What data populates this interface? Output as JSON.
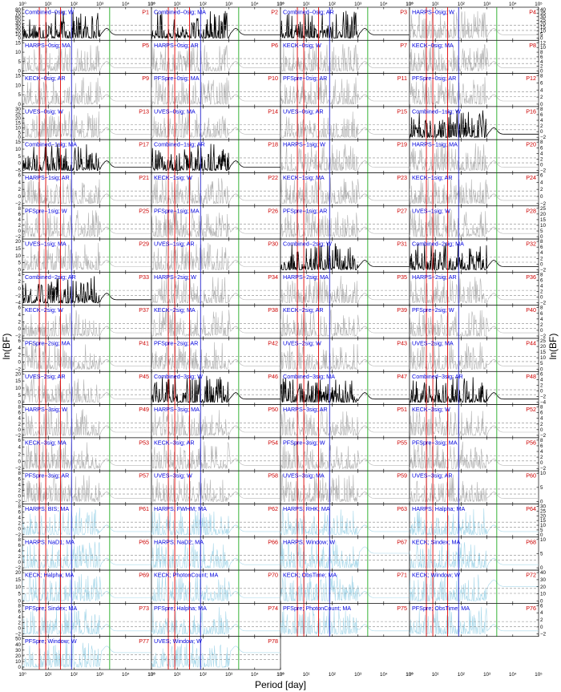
{
  "figure": {
    "xlabel": "Period [day]",
    "ylabel_left": "ln(BF)",
    "ylabel_right": "ln(BF)",
    "x_tick_labels": [
      "10⁰",
      "10¹",
      "10²",
      "10³",
      "10⁴",
      "10⁵"
    ]
  },
  "chart_data": {
    "type": "line",
    "grid_rows": 20,
    "grid_cols": 4,
    "x_scale": "log",
    "xlim": [
      1,
      100000
    ],
    "vertical_lines": [
      {
        "color": "#e00000"
      },
      {
        "color": "#e00000"
      },
      {
        "color": "#e00000"
      },
      {
        "color": "#2222cc"
      },
      {
        "color": "#22aa22"
      }
    ],
    "series_colors": {
      "black": "#000000",
      "gray": "#b4b4b4",
      "lightblue": "#a8d8ea"
    },
    "panels": [
      {
        "id": "P1",
        "name": "Combined−0sig; W",
        "color": "black",
        "yticks": [
          "0",
          "10",
          "20",
          "30",
          "40",
          "50",
          "60",
          "70",
          "80"
        ]
      },
      {
        "id": "P2",
        "name": "Combined−0sig; MA",
        "color": "black",
        "yticks": []
      },
      {
        "id": "P3",
        "name": "Combined−0sig; AR",
        "color": "black",
        "yticks": []
      },
      {
        "id": "P4",
        "name": "HARPS−0sig; W",
        "color": "gray",
        "yticks": [
          "0",
          "5",
          "10",
          "15",
          "20",
          "25",
          "30",
          "35",
          "40"
        ]
      },
      {
        "id": "P5",
        "name": "HARPS−0sig; MA",
        "color": "gray",
        "yticks": [
          "0",
          "5",
          "10",
          "15"
        ]
      },
      {
        "id": "P6",
        "name": "HARPS−0sig; AR",
        "color": "gray",
        "yticks": []
      },
      {
        "id": "P7",
        "name": "KECK−0sig; W",
        "color": "gray",
        "yticks": []
      },
      {
        "id": "P8",
        "name": "KECK−0sig; MA",
        "color": "gray",
        "yticks": [
          "0",
          "2",
          "4",
          "6",
          "8",
          "10",
          "12"
        ]
      },
      {
        "id": "P9",
        "name": "KECK−0sig; AR",
        "color": "gray",
        "yticks": [
          "0",
          "5",
          "10",
          "15"
        ]
      },
      {
        "id": "P10",
        "name": "PFSpre−0sig; MA",
        "color": "gray",
        "yticks": []
      },
      {
        "id": "P11",
        "name": "PFSpre−0sig; AR",
        "color": "gray",
        "yticks": []
      },
      {
        "id": "P12",
        "name": "PFSpre−0sig; AR",
        "color": "gray",
        "yticks": [
          "0",
          "2",
          "4",
          "6",
          "8"
        ]
      },
      {
        "id": "P13",
        "name": "UVES−0sig; W",
        "color": "gray",
        "yticks": [
          "0",
          "5",
          "10",
          "15",
          "20",
          "25",
          "30"
        ]
      },
      {
        "id": "P14",
        "name": "UVES−0sig; MA",
        "color": "gray",
        "yticks": []
      },
      {
        "id": "P15",
        "name": "UVES−0sig; AR",
        "color": "gray",
        "yticks": []
      },
      {
        "id": "P16",
        "name": "Combined−1sig; W",
        "color": "black",
        "yticks": [
          "−2",
          "0",
          "2",
          "4",
          "6",
          "8"
        ]
      },
      {
        "id": "P17",
        "name": "Combined−1sig; MA",
        "color": "black",
        "yticks": [
          "−5",
          "0",
          "5",
          "10",
          "15"
        ]
      },
      {
        "id": "P18",
        "name": "Combined−1sig; AR",
        "color": "black",
        "yticks": []
      },
      {
        "id": "P19",
        "name": "HARPS−1sig; W",
        "color": "gray",
        "yticks": []
      },
      {
        "id": "P20",
        "name": "HARPS−1sig; MA",
        "color": "gray",
        "yticks": [
          "−2",
          "0",
          "2",
          "4",
          "6",
          "8"
        ]
      },
      {
        "id": "P21",
        "name": "HARPS−1sig; AR",
        "color": "gray",
        "yticks": [
          "−2",
          "0",
          "2",
          "4",
          "6"
        ]
      },
      {
        "id": "P22",
        "name": "KECK−1sig; W",
        "color": "gray",
        "yticks": []
      },
      {
        "id": "P23",
        "name": "KECK−1sig; MA",
        "color": "gray",
        "yticks": []
      },
      {
        "id": "P24",
        "name": "KECK−1sig; AR",
        "color": "gray",
        "yticks": [
          "−2",
          "0",
          "2",
          "4",
          "6"
        ]
      },
      {
        "id": "P25",
        "name": "PFSpre−1sig; W",
        "color": "gray",
        "yticks": [
          "−2",
          "0",
          "2",
          "4",
          "6",
          "8"
        ]
      },
      {
        "id": "P26",
        "name": "PFSpre−1sig; MA",
        "color": "gray",
        "yticks": []
      },
      {
        "id": "P27",
        "name": "PFSpre−1sig; AR",
        "color": "gray",
        "yticks": []
      },
      {
        "id": "P28",
        "name": "UVES−1sig; W",
        "color": "gray",
        "yticks": [
          "0",
          "5",
          "10",
          "15",
          "20",
          "25"
        ]
      },
      {
        "id": "P29",
        "name": "UVES−1sig; MA",
        "color": "gray",
        "yticks": [
          "0",
          "5",
          "10",
          "15",
          "20"
        ]
      },
      {
        "id": "P30",
        "name": "UVES−1sig; AR",
        "color": "gray",
        "yticks": []
      },
      {
        "id": "P31",
        "name": "Combined−2sig; W",
        "color": "black",
        "yticks": []
      },
      {
        "id": "P32",
        "name": "Combined−2sig; MA",
        "color": "black",
        "yticks": [
          "−2",
          "0",
          "2",
          "4",
          "6",
          "8"
        ]
      },
      {
        "id": "P33",
        "name": "Combined−2sig; AR",
        "color": "black",
        "yticks": [
          "−4",
          "−2",
          "0",
          "2",
          "4"
        ]
      },
      {
        "id": "P34",
        "name": "HARPS−2sig; W",
        "color": "gray",
        "yticks": []
      },
      {
        "id": "P35",
        "name": "HARPS−2sig; MA",
        "color": "gray",
        "yticks": []
      },
      {
        "id": "P36",
        "name": "HARPS−2sig; AR",
        "color": "gray",
        "yticks": [
          "−2",
          "0",
          "2",
          "4",
          "6",
          "8"
        ]
      },
      {
        "id": "P37",
        "name": "KECK−2sig; W",
        "color": "gray",
        "yticks": [
          "−2",
          "0",
          "2",
          "4",
          "6"
        ]
      },
      {
        "id": "P38",
        "name": "KECK−2sig; MA",
        "color": "gray",
        "yticks": []
      },
      {
        "id": "P39",
        "name": "KECK−2sig; AR",
        "color": "gray",
        "yticks": []
      },
      {
        "id": "P40",
        "name": "PFSpre−2sig; W",
        "color": "gray",
        "yticks": [
          "−2",
          "0",
          "2",
          "4",
          "6",
          "8"
        ]
      },
      {
        "id": "P41",
        "name": "PFSpre−2sig; MA",
        "color": "gray",
        "yticks": [
          "−2",
          "0",
          "2",
          "4",
          "6"
        ]
      },
      {
        "id": "P42",
        "name": "PFSpre−2sig; AR",
        "color": "gray",
        "yticks": []
      },
      {
        "id": "P43",
        "name": "UVES−2sig; W",
        "color": "gray",
        "yticks": []
      },
      {
        "id": "P44",
        "name": "UVES−2sig; MA",
        "color": "gray",
        "yticks": [
          "0",
          "5",
          "10",
          "15",
          "20",
          "25"
        ]
      },
      {
        "id": "P45",
        "name": "UVES−2sig; AR",
        "color": "gray",
        "yticks": [
          "0",
          "5",
          "10",
          "15",
          "20"
        ]
      },
      {
        "id": "P46",
        "name": "Combined−3sig; W",
        "color": "black",
        "yticks": []
      },
      {
        "id": "P47",
        "name": "Combined−3sig; MA",
        "color": "black",
        "yticks": []
      },
      {
        "id": "P48",
        "name": "Combined−3sig; AR",
        "color": "black",
        "yticks": [
          "−4",
          "−2",
          "0",
          "2",
          "4",
          "6"
        ]
      },
      {
        "id": "P49",
        "name": "HARPS−3sig; W",
        "color": "gray",
        "yticks": [
          "−2",
          "0",
          "2",
          "4",
          "6",
          "8"
        ]
      },
      {
        "id": "P50",
        "name": "HARPS−3sig; MA",
        "color": "gray",
        "yticks": []
      },
      {
        "id": "P51",
        "name": "HARPS−3sig; AR",
        "color": "gray",
        "yticks": []
      },
      {
        "id": "P52",
        "name": "KECK−3sig; W",
        "color": "gray",
        "yticks": [
          "−2",
          "0",
          "2",
          "4",
          "6",
          "8"
        ]
      },
      {
        "id": "P53",
        "name": "KECK−3sig; MA",
        "color": "gray",
        "yticks": [
          "−2",
          "0",
          "2",
          "4",
          "6"
        ]
      },
      {
        "id": "P54",
        "name": "KECK−3sig; AR",
        "color": "gray",
        "yticks": []
      },
      {
        "id": "P55",
        "name": "PFSpre−3sig; W",
        "color": "gray",
        "yticks": []
      },
      {
        "id": "P56",
        "name": "PFSpre−3sig; MA",
        "color": "gray",
        "yticks": [
          "−2",
          "0",
          "2",
          "4",
          "6",
          "8"
        ]
      },
      {
        "id": "P57",
        "name": "PFSpre−3sig; AR",
        "color": "gray",
        "yticks": [
          "−2",
          "0",
          "2",
          "4",
          "6",
          "8"
        ]
      },
      {
        "id": "P58",
        "name": "UVES−3sig; W",
        "color": "gray",
        "yticks": []
      },
      {
        "id": "P59",
        "name": "UVES−3sig; MA",
        "color": "gray",
        "yticks": []
      },
      {
        "id": "P60",
        "name": "UVES−3sig; AR",
        "color": "gray",
        "yticks": [
          "0",
          "5",
          "10"
        ]
      },
      {
        "id": "P61",
        "name": "HARPS; BIS; MA",
        "color": "lightblue",
        "yticks": [
          "−2",
          "0",
          "2",
          "4",
          "6",
          "8"
        ]
      },
      {
        "id": "P62",
        "name": "HARPS; FWHM; MA",
        "color": "lightblue",
        "yticks": []
      },
      {
        "id": "P63",
        "name": "HARPS; RHK; MA",
        "color": "lightblue",
        "yticks": []
      },
      {
        "id": "P64",
        "name": "HARPS; Halpha; MA",
        "color": "lightblue",
        "yticks": [
          "0",
          "5",
          "10",
          "15",
          "20",
          "25",
          "30"
        ]
      },
      {
        "id": "P65",
        "name": "HARPS; NaD1; MA",
        "color": "lightblue",
        "yticks": [
          "−2",
          "0",
          "2",
          "4",
          "6",
          "8"
        ]
      },
      {
        "id": "P66",
        "name": "HARPS; NaD2; MA",
        "color": "lightblue",
        "yticks": []
      },
      {
        "id": "P67",
        "name": "HARPS; Window; W",
        "color": "lightblue",
        "yticks": []
      },
      {
        "id": "P68",
        "name": "KECK; Sindex; MA",
        "color": "lightblue",
        "yticks": [
          "0",
          "5",
          "10"
        ]
      },
      {
        "id": "P69",
        "name": "KECK; Halpha; MA",
        "color": "lightblue",
        "yticks": [
          "0",
          "5",
          "10",
          "15",
          "20"
        ]
      },
      {
        "id": "P70",
        "name": "KECK; PhotonCount; MA",
        "color": "lightblue",
        "yticks": []
      },
      {
        "id": "P71",
        "name": "KECK; ObsTime; MA",
        "color": "lightblue",
        "yticks": []
      },
      {
        "id": "P72",
        "name": "KECK; Window; W",
        "color": "lightblue",
        "yticks": [
          "0",
          "10",
          "20",
          "30",
          "40"
        ]
      },
      {
        "id": "P73",
        "name": "PFSpre; Sindex; MA",
        "color": "lightblue",
        "yticks": [
          "−2",
          "0",
          "2",
          "4",
          "6",
          "8"
        ]
      },
      {
        "id": "P74",
        "name": "PFSpre; Halpha; MA",
        "color": "lightblue",
        "yticks": []
      },
      {
        "id": "P75",
        "name": "PFSpre; PhotonCount; MA",
        "color": "lightblue",
        "yticks": []
      },
      {
        "id": "P76",
        "name": "PFSpre; ObsTime; MA",
        "color": "lightblue",
        "yticks": [
          "−2",
          "0",
          "2",
          "4",
          "6"
        ]
      },
      {
        "id": "P77",
        "name": "PFSpre; Window; W",
        "color": "lightblue",
        "yticks": [
          "0",
          "10",
          "20",
          "30",
          "40",
          "50"
        ]
      },
      {
        "id": "P78",
        "name": "UVES; Window; W",
        "color": "lightblue",
        "yticks": []
      }
    ]
  }
}
